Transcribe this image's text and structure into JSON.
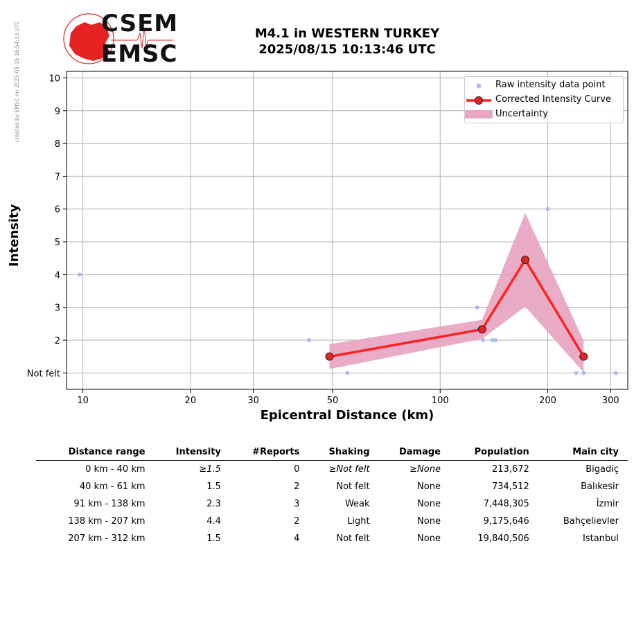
{
  "side_note": "created by EMSC on 2025-08-15 16:54:33 UTC",
  "logo": {
    "top_text": "CSEM",
    "bottom_text": "EMSC",
    "color": "#e52320"
  },
  "chart_data": {
    "type": "scatter",
    "title": "M4.1 in WESTERN TURKEY",
    "subtitle": "2025/08/15 10:13:46 UTC",
    "xlabel": "Epicentral Distance (km)",
    "ylabel": "Intensity",
    "x_scale": "log",
    "xlim": [
      9,
      335
    ],
    "ylim": [
      0.5,
      10.2
    ],
    "x_ticks": [
      10,
      20,
      30,
      50,
      100,
      200,
      300
    ],
    "x_tick_labels": [
      "10",
      "20",
      "30",
      "50",
      "100",
      "200",
      "300"
    ],
    "y_ticks": [
      1,
      2,
      3,
      4,
      5,
      6,
      7,
      8,
      9,
      10
    ],
    "y_tick_labels": [
      "Not felt",
      "2",
      "3",
      "4",
      "5",
      "6",
      "7",
      "8",
      "9",
      "10"
    ],
    "grid": true,
    "legend_position": "top-right",
    "series": [
      {
        "name": "Raw intensity data point",
        "kind": "scatter",
        "color": "#aebde8",
        "points": [
          [
            9.8,
            4
          ],
          [
            43,
            2
          ],
          [
            55,
            1
          ],
          [
            127,
            3
          ],
          [
            132,
            2
          ],
          [
            140,
            2
          ],
          [
            143,
            2
          ],
          [
            200,
            6
          ],
          [
            240,
            1
          ],
          [
            252,
            1
          ],
          [
            310,
            1
          ]
        ]
      },
      {
        "name": "Corrected Intensity Curve",
        "kind": "line",
        "color": "#ff2222",
        "marker_color": "#e52320",
        "points": [
          [
            49,
            1.5
          ],
          [
            131,
            2.33
          ],
          [
            173,
            4.45
          ],
          [
            252,
            1.5
          ]
        ]
      },
      {
        "name": "Uncertainty",
        "kind": "band",
        "color": "#e8a6c2",
        "upper": [
          [
            49,
            1.88
          ],
          [
            131,
            2.62
          ],
          [
            173,
            5.88
          ],
          [
            252,
            1.98
          ]
        ],
        "lower": [
          [
            49,
            1.12
          ],
          [
            131,
            2.04
          ],
          [
            173,
            3.02
          ],
          [
            252,
            1.02
          ]
        ]
      }
    ]
  },
  "table": {
    "headers": [
      "Distance range",
      "Intensity",
      "#Reports",
      "Shaking",
      "Damage",
      "Population",
      "Main city"
    ],
    "rows": [
      [
        "0 km -   40 km",
        "≥1.5",
        "0",
        "≥Not felt",
        "≥None",
        "213,672",
        "Bigadiç"
      ],
      [
        "40 km -   61 km",
        "1.5",
        "2",
        "Not felt",
        "None",
        "734,512",
        "Balıkesir"
      ],
      [
        "91 km -  138 km",
        "2.3",
        "3",
        "Weak",
        "None",
        "7,448,305",
        "İzmir"
      ],
      [
        "138 km -  207 km",
        "4.4",
        "2",
        "Light",
        "None",
        "9,175,646",
        "Bahçelievler"
      ],
      [
        "207 km -  312 km",
        "1.5",
        "4",
        "Not felt",
        "None",
        "19,840,506",
        "Istanbul"
      ]
    ]
  }
}
